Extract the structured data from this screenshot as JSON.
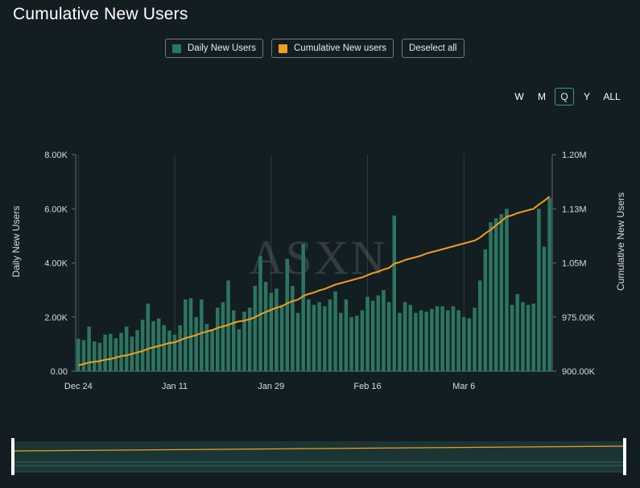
{
  "title": "Cumulative New Users",
  "legend": {
    "daily_label": "Daily New Users",
    "cumulative_label": "Cumulative New users",
    "deselect_label": "Deselect all"
  },
  "range_buttons": [
    "W",
    "M",
    "Q",
    "Y",
    "ALL"
  ],
  "range_selected": "Q",
  "colors": {
    "background": "#131e22",
    "bar": "#2c7560",
    "line": "#f39c1e",
    "grid": "#2c3a3e",
    "accent": "#2f9d86"
  },
  "watermark": "ASXN",
  "chart_data": {
    "type": "bar+line",
    "title": "Cumulative New Users",
    "x_tick_labels": [
      "Dec 24",
      "Jan 11",
      "Jan 29",
      "Feb 16",
      "Mar 6"
    ],
    "x_tick_indices": [
      0,
      18,
      36,
      54,
      72
    ],
    "y_left": {
      "label": "Daily New Users",
      "range": [
        0,
        8000
      ],
      "ticks": [
        0,
        2000,
        4000,
        6000,
        8000
      ],
      "tick_labels": [
        "0.00",
        "2.00K",
        "4.00K",
        "6.00K",
        "8.00K"
      ]
    },
    "y_right": {
      "label": "Cumulative New Users",
      "range": [
        900000,
        1200000
      ],
      "ticks": [
        900000,
        975000,
        1050000,
        1125000,
        1200000
      ],
      "tick_labels": [
        "900.00K",
        "975.00K",
        "1.05M",
        "1.13M",
        "1.20M"
      ]
    },
    "grid": "vertical",
    "series": [
      {
        "name": "Daily New Users",
        "type": "bar",
        "axis": "left",
        "values": [
          1200,
          1150,
          1650,
          1100,
          1050,
          1350,
          1380,
          1220,
          1420,
          1650,
          1280,
          1520,
          1900,
          2500,
          1850,
          1950,
          1700,
          1500,
          1350,
          1700,
          2650,
          2700,
          2000,
          2650,
          1750,
          1550,
          2350,
          2550,
          3350,
          2250,
          1550,
          2200,
          2350,
          3150,
          4250,
          3300,
          2900,
          3050,
          2450,
          4150,
          3150,
          2150,
          4700,
          2650,
          2450,
          2550,
          2400,
          2650,
          2950,
          2150,
          2650,
          2000,
          2050,
          2250,
          2750,
          2600,
          2800,
          3000,
          2550,
          5750,
          2150,
          2550,
          2450,
          2150,
          2250,
          2200,
          2300,
          2400,
          2400,
          2250,
          2400,
          2250,
          2000,
          1950,
          2350,
          3350,
          4500,
          5500,
          5650,
          5800,
          6000,
          2450,
          2850,
          2550,
          2450,
          2500,
          6000,
          4600,
          6400
        ]
      },
      {
        "name": "Cumulative New users",
        "type": "line",
        "axis": "right",
        "values": [
          908000,
          910000,
          912000,
          913000,
          914000,
          916000,
          917000,
          919000,
          921000,
          922000,
          924000,
          926000,
          928000,
          931000,
          933000,
          935000,
          937000,
          939000,
          940000,
          943000,
          946000,
          948000,
          950000,
          953000,
          955000,
          957000,
          960000,
          962000,
          964000,
          967000,
          969000,
          970000,
          972000,
          975000,
          979000,
          982000,
          985000,
          988000,
          990000,
          994000,
          997000,
          999000,
          1004000,
          1007000,
          1009000,
          1012000,
          1014000,
          1017000,
          1020000,
          1022000,
          1024000,
          1026000,
          1028000,
          1030000,
          1033000,
          1036000,
          1038000,
          1041000,
          1043000,
          1049000,
          1051000,
          1054000,
          1056000,
          1058000,
          1060000,
          1063000,
          1065000,
          1067000,
          1069000,
          1071000,
          1073000,
          1075000,
          1077000,
          1079000,
          1081000,
          1085000,
          1091000,
          1096000,
          1102000,
          1108000,
          1114000,
          1116000,
          1119000,
          1121000,
          1123000,
          1125000,
          1131000,
          1136000,
          1142000
        ]
      }
    ]
  }
}
